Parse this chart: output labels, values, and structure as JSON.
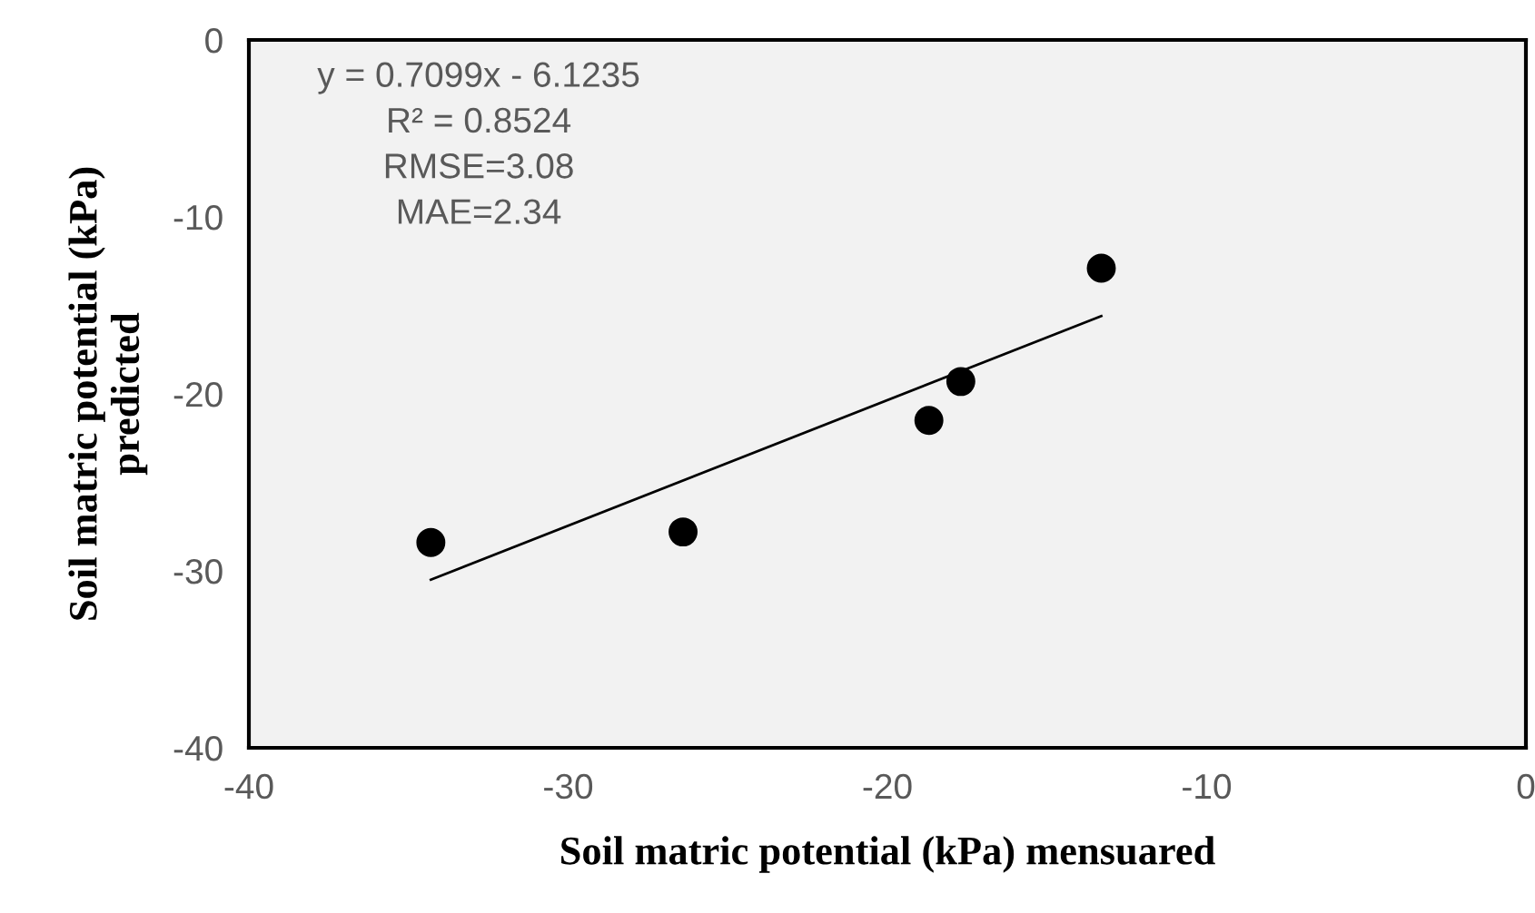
{
  "chart_data": {
    "type": "scatter",
    "xlabel": "Soil matric potential (kPa) mensuared",
    "ylabel": "Soil matric potential (kPa)\npredicted",
    "xlim": [
      -40,
      0
    ],
    "ylim": [
      -40,
      0
    ],
    "xticks": [
      -40,
      -30,
      -20,
      -10,
      0
    ],
    "yticks": [
      -40,
      -30,
      -20,
      -10,
      0
    ],
    "grid": false,
    "marker": "circle",
    "series": [
      {
        "color": "#000000",
        "x": [
          -34.3,
          -26.4,
          -18.7,
          -17.7,
          -13.3
        ],
        "values": [
          -28.4,
          -27.8,
          -21.5,
          -19.3,
          -12.9
        ]
      },
      {
        "type": "line",
        "color": "#000000",
        "line_style": "solid",
        "marker": "none",
        "x": [
          -34.3,
          -13.3
        ],
        "values": [
          -30.5,
          -15.6
        ]
      }
    ],
    "annotations": [
      "y = 0.7099x - 6.1235\nR² = 0.8524\nRMSE=3.08\nMAE=2.34"
    ]
  }
}
